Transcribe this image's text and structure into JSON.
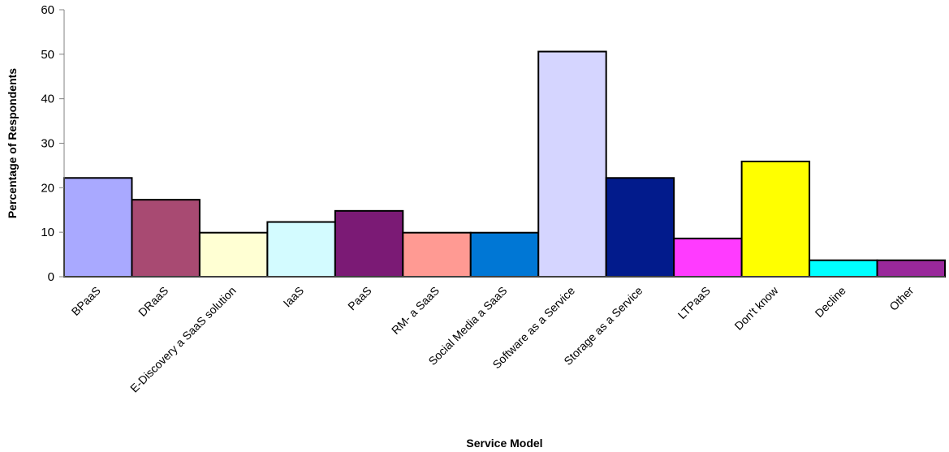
{
  "chart_data": {
    "type": "bar",
    "title": "",
    "xlabel": "Service Model",
    "ylabel": "Percentage of Respondents",
    "ylim": [
      0,
      60
    ],
    "yticks": [
      0,
      10,
      20,
      30,
      40,
      50,
      60
    ],
    "grid": false,
    "legend": "none",
    "categories": [
      "BPaaS",
      "DRaaS",
      "E-Discovery a SaaS solution",
      "IaaS",
      "PaaS",
      "RM- a SaaS",
      "Social Media a SaaS",
      "Software as a Service",
      "Storage as a Service",
      "LTPaaS",
      "Don't know",
      "Decline",
      "Other"
    ],
    "values": [
      22.2,
      17.3,
      9.9,
      12.3,
      14.8,
      9.9,
      9.9,
      50.6,
      22.2,
      8.6,
      25.9,
      3.7,
      3.7
    ],
    "colors": [
      "#A9A9FF",
      "#A84A72",
      "#FFFFD3",
      "#D3FBFF",
      "#7B1A75",
      "#FF9A93",
      "#0077D5",
      "#D5D5FF",
      "#021B8C",
      "#FF3BFF",
      "#FFFF00",
      "#00FFFF",
      "#99289B"
    ]
  }
}
